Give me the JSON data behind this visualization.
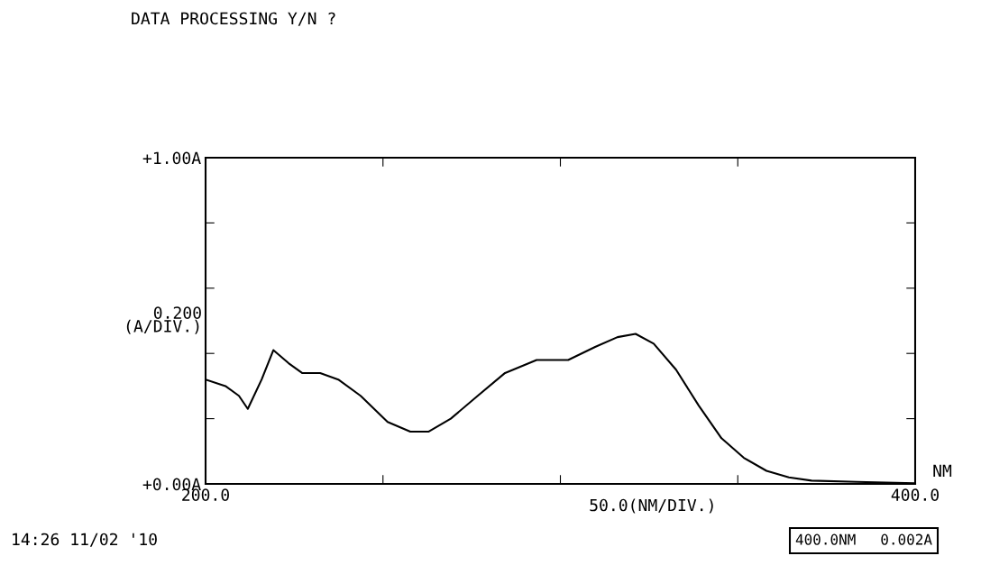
{
  "chart_data": {
    "type": "line",
    "title": "DATA PROCESSING Y/N ?",
    "xlabel": "50.0(NM/DIV.)",
    "ylabel": "0.200\n(A/DIV.)",
    "x": [
      200,
      205.6,
      209.4,
      211.9,
      215.8,
      219.1,
      223.4,
      227.2,
      232.3,
      237.4,
      243.7,
      251.3,
      257.7,
      262.8,
      269.1,
      276.7,
      284.4,
      293.3,
      302.2,
      309.8,
      316.1,
      321.2,
      326.3,
      332.6,
      339.0,
      345.4,
      351.7,
      358.1,
      364.4,
      370.8,
      383.5,
      400
    ],
    "series": [
      {
        "color": "#000000",
        "values": [
          0.32,
          0.3,
          0.27,
          0.23,
          0.32,
          0.41,
          0.37,
          0.34,
          0.34,
          0.32,
          0.27,
          0.19,
          0.16,
          0.16,
          0.2,
          0.27,
          0.34,
          0.38,
          0.38,
          0.42,
          0.45,
          0.46,
          0.43,
          0.35,
          0.24,
          0.14,
          0.08,
          0.04,
          0.02,
          0.01,
          0.006,
          0.002
        ]
      }
    ],
    "xlim": [
      200,
      400
    ],
    "xticks": [
      {
        "value": 200,
        "label": "200.0"
      },
      {
        "value": 250,
        "label": null
      },
      {
        "value": 300,
        "label": null
      },
      {
        "value": 350,
        "label": null
      },
      {
        "value": 400,
        "label": "400.0"
      }
    ],
    "ylim": [
      0,
      1
    ],
    "yticks": [
      {
        "value": 0,
        "label": "+0.00A"
      },
      {
        "value": 0.2,
        "label": null
      },
      {
        "value": 0.4,
        "label": null
      },
      {
        "value": 0.6,
        "label": null
      },
      {
        "value": 0.8,
        "label": null
      },
      {
        "value": 1,
        "label": "+1.00A"
      }
    ],
    "grid": false,
    "legend": false,
    "line_style": "solid",
    "marker": "none",
    "annotations": [
      "NM",
      "14:26 11/02 '10",
      "400.0NM",
      "0.002A"
    ]
  }
}
